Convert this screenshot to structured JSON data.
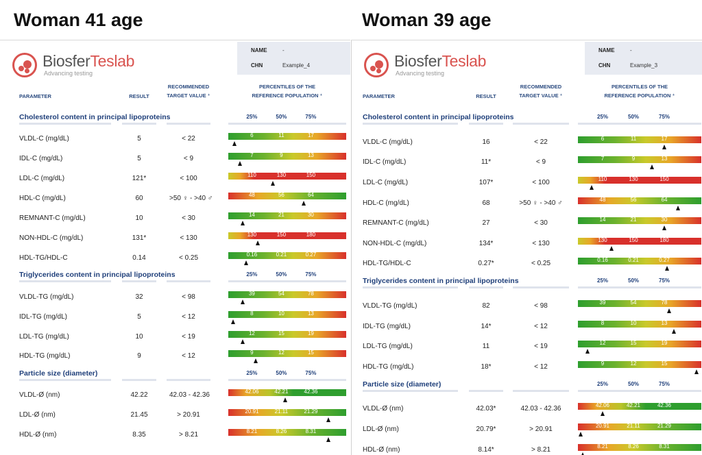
{
  "titles": {
    "left": "Woman 41 age",
    "right": "Woman 39 age"
  },
  "logo": {
    "biosfer": "Biosfer",
    "teslab": "Teslab",
    "tagline": "Advancing testing"
  },
  "labels": {
    "name": "NAME",
    "chn": "CHN",
    "parameter": "PARAMETER",
    "result": "RESULT",
    "recommended_1": "RECOMMENDED",
    "recommended_2": "TARGET VALUE ⁺",
    "percentiles_1": "PERCENTILES OF THE",
    "percentiles_2": "REFERENCE POPULATION ⁺",
    "p25": "25%",
    "p50": "50%",
    "p75": "75%"
  },
  "colors": {
    "bar_green": "#2e9e2e",
    "bar_yellow": "#c9c92a",
    "bar_red": "#d8302b",
    "section_blue": "#1f3f7a"
  },
  "reports": [
    {
      "name": "-",
      "chn": "Example_4",
      "sections": [
        {
          "title": "Cholesterol content in principal lipoproteins",
          "rows": [
            {
              "param": "VLDL-C (mg/dL)",
              "result": "5",
              "target": "< 22",
              "ticks": [
                "6",
                "11",
                "17"
              ],
              "gradient": "inc",
              "marker": 0.05
            },
            {
              "param": "IDL-C (mg/dL)",
              "result": "5",
              "target": "< 9",
              "ticks": [
                "7",
                "9",
                "13"
              ],
              "gradient": "inc",
              "marker": 0.1
            },
            {
              "param": "LDL-C (mg/dL)",
              "result": "121*",
              "target": "< 100",
              "ticks": [
                "110",
                "130",
                "150"
              ],
              "gradient": "ldl",
              "marker": 0.38
            },
            {
              "param": "HDL-C (mg/dL)",
              "result": "60",
              "target": ">50 ♀ - >40 ♂",
              "ticks": [
                "48",
                "56",
                "64"
              ],
              "gradient": "dec",
              "marker": 0.64
            },
            {
              "param": "REMNANT-C (mg/dL)",
              "result": "10",
              "target": "< 30",
              "ticks": [
                "14",
                "21",
                "30"
              ],
              "gradient": "inc",
              "marker": 0.12
            },
            {
              "param": "NON-HDL-C (mg/dL)",
              "result": "131*",
              "target": "< 130",
              "ticks": [
                "130",
                "150",
                "180"
              ],
              "gradient": "ldl",
              "marker": 0.25
            },
            {
              "param": "HDL-TG/HDL-C",
              "result": "0.14",
              "target": "< 0.25",
              "ticks": [
                "0.16",
                "0.21",
                "0.27"
              ],
              "gradient": "inc",
              "marker": 0.15
            }
          ]
        },
        {
          "title": "Triglycerides content in principal lipoproteins",
          "rows": [
            {
              "param": "VLDL-TG (mg/dL)",
              "result": "32",
              "target": "< 98",
              "ticks": [
                "39",
                "54",
                "78"
              ],
              "gradient": "inc",
              "marker": 0.12
            },
            {
              "param": "IDL-TG (mg/dL)",
              "result": "5",
              "target": "< 12",
              "ticks": [
                "8",
                "10",
                "13"
              ],
              "gradient": "inc",
              "marker": 0.04
            },
            {
              "param": "LDL-TG (mg/dL)",
              "result": "10",
              "target": "< 19",
              "ticks": [
                "12",
                "15",
                "19"
              ],
              "gradient": "inc",
              "marker": 0.12
            },
            {
              "param": "HDL-TG (mg/dL)",
              "result": "9",
              "target": "< 12",
              "ticks": [
                "9",
                "12",
                "15"
              ],
              "gradient": "inc",
              "marker": 0.23
            }
          ]
        },
        {
          "title": "Particle size (diameter)",
          "rows": [
            {
              "param": "VLDL-Ø (nm)",
              "result": "42.22",
              "target": "42.03 - 42.36",
              "ticks": [
                "42.06",
                "42.21",
                "42.36"
              ],
              "gradient": "vldlsize",
              "marker": 0.48
            },
            {
              "param": "LDL-Ø (nm)",
              "result": "21.45",
              "target": "> 20.91",
              "ticks": [
                "20.91",
                "21.11",
                "21.29"
              ],
              "gradient": "dec",
              "marker": 0.85
            },
            {
              "param": "HDL-Ø (nm)",
              "result": "8.35",
              "target": "> 8.21",
              "ticks": [
                "8.21",
                "8.26",
                "8.31"
              ],
              "gradient": "dec",
              "marker": 0.85
            }
          ]
        }
      ]
    },
    {
      "name": "-",
      "chn": "Example_3",
      "sections": [
        {
          "title": "Cholesterol content in principal lipoproteins",
          "rows": [
            {
              "param": "VLDL-C (mg/dL)",
              "result": "16",
              "target": "< 22",
              "ticks": [
                "6",
                "11",
                "17"
              ],
              "gradient": "inc",
              "marker": 0.7
            },
            {
              "param": "IDL-C (mg/dL)",
              "result": "11*",
              "target": "< 9",
              "ticks": [
                "7",
                "9",
                "13"
              ],
              "gradient": "inc",
              "marker": 0.6
            },
            {
              "param": "LDL-C (mg/dL)",
              "result": "107*",
              "target": "< 100",
              "ticks": [
                "110",
                "130",
                "150"
              ],
              "gradient": "ldl",
              "marker": 0.11
            },
            {
              "param": "HDL-C (mg/dL)",
              "result": "68",
              "target": ">50 ♀ - >40 ♂",
              "ticks": [
                "48",
                "56",
                "64"
              ],
              "gradient": "dec",
              "marker": 0.81
            },
            {
              "param": "REMNANT-C (mg/dL)",
              "result": "27",
              "target": "< 30",
              "ticks": [
                "14",
                "21",
                "30"
              ],
              "gradient": "inc",
              "marker": 0.7
            },
            {
              "param": "NON-HDL-C (mg/dL)",
              "result": "134*",
              "target": "< 130",
              "ticks": [
                "130",
                "150",
                "180"
              ],
              "gradient": "ldl",
              "marker": 0.27
            },
            {
              "param": "HDL-TG/HDL-C",
              "result": "0.27*",
              "target": "< 0.25",
              "ticks": [
                "0.16",
                "0.21",
                "0.27"
              ],
              "gradient": "inc",
              "marker": 0.72
            }
          ]
        },
        {
          "title": "Triglycerides content in principal lipoproteins",
          "rows": [
            {
              "param": "VLDL-TG (mg/dL)",
              "result": "82",
              "target": "< 98",
              "ticks": [
                "39",
                "54",
                "78"
              ],
              "gradient": "inc",
              "marker": 0.74
            },
            {
              "param": "IDL-TG (mg/dL)",
              "result": "14*",
              "target": "< 12",
              "ticks": [
                "8",
                "10",
                "13"
              ],
              "gradient": "inc",
              "marker": 0.78
            },
            {
              "param": "LDL-TG (mg/dL)",
              "result": "11",
              "target": "< 19",
              "ticks": [
                "12",
                "15",
                "19"
              ],
              "gradient": "inc",
              "marker": 0.08
            },
            {
              "param": "HDL-TG (mg/dL)",
              "result": "18*",
              "target": "< 12",
              "ticks": [
                "9",
                "12",
                "15"
              ],
              "gradient": "inc",
              "marker": 0.96
            }
          ]
        },
        {
          "title": "Particle size (diameter)",
          "rows": [
            {
              "param": "VLDL-Ø (nm)",
              "result": "42.03*",
              "target": "42.03 - 42.36",
              "ticks": [
                "42.06",
                "42.21",
                "42.36"
              ],
              "gradient": "vldlsize",
              "marker": 0.2
            },
            {
              "param": "LDL-Ø (nm)",
              "result": "20.79*",
              "target": "> 20.91",
              "ticks": [
                "20.91",
                "21.11",
                "21.29"
              ],
              "gradient": "dec",
              "marker": 0.02
            },
            {
              "param": "HDL-Ø (nm)",
              "result": "8.14*",
              "target": "> 8.21",
              "ticks": [
                "8.21",
                "8.26",
                "8.31"
              ],
              "gradient": "dec",
              "marker": 0.04
            }
          ]
        }
      ]
    }
  ]
}
